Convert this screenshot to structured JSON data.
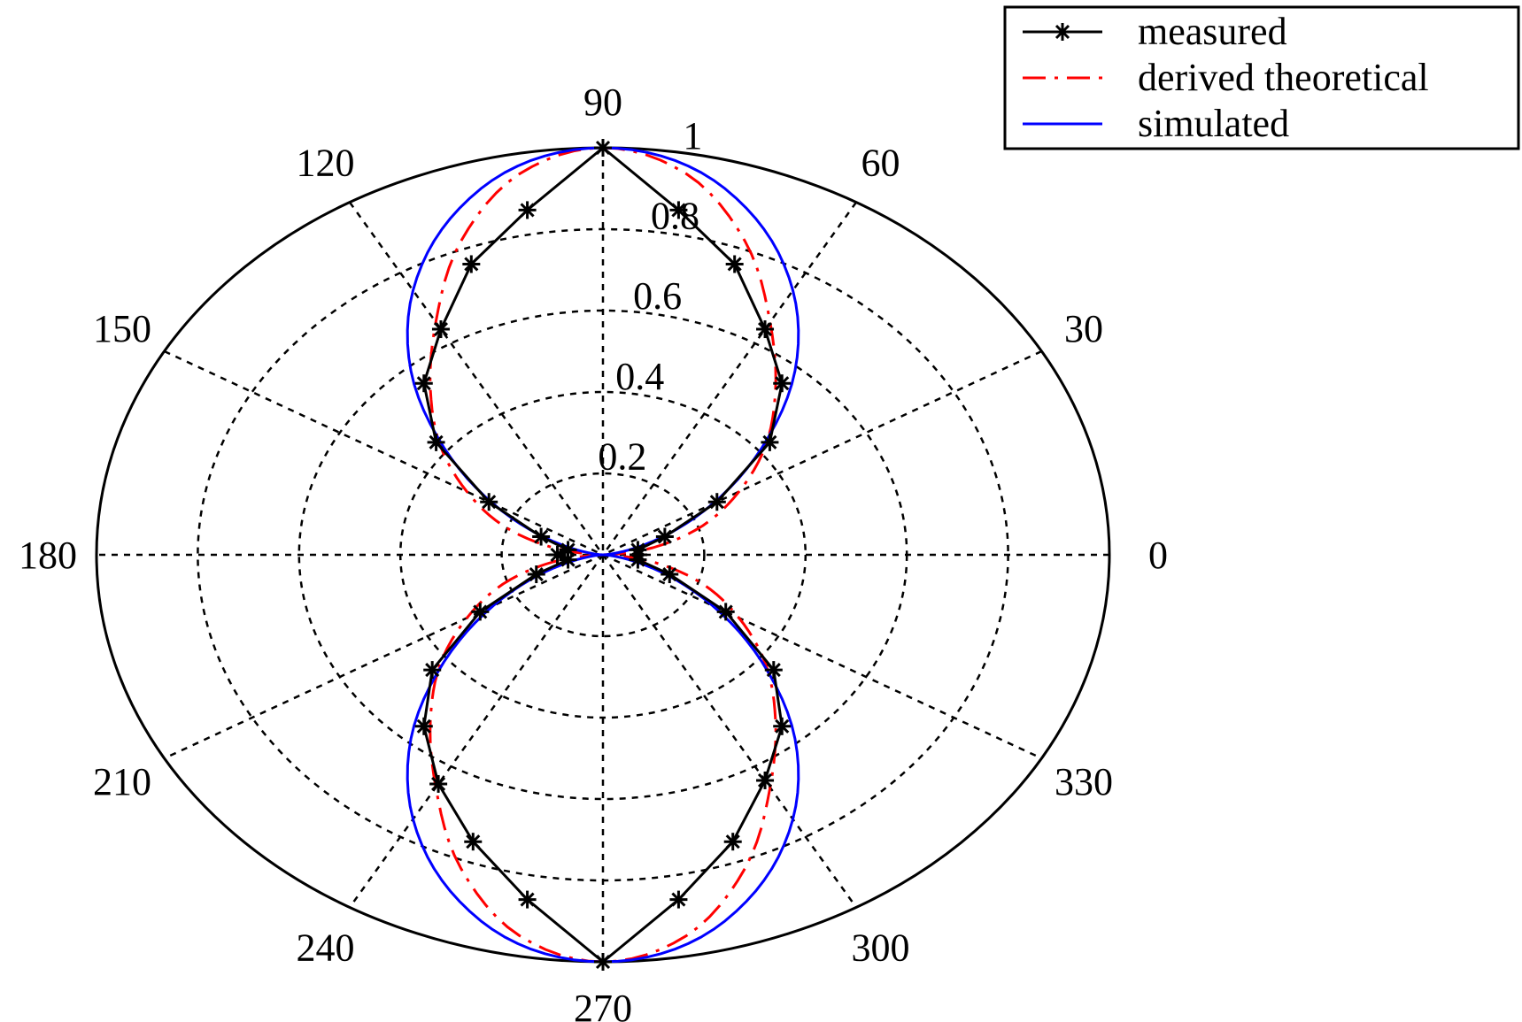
{
  "chart_data": {
    "type": "polar",
    "title": "",
    "theta_unit": "degrees",
    "r_range": [
      0,
      1
    ],
    "r_ticks": [
      {
        "value": 0.2,
        "label": "0.2"
      },
      {
        "value": 0.4,
        "label": "0.4"
      },
      {
        "value": 0.6,
        "label": "0.6"
      },
      {
        "value": 0.8,
        "label": "0.8"
      },
      {
        "value": 1.0,
        "label": "1"
      }
    ],
    "angle_ticks": [
      {
        "value": 0,
        "label": "0"
      },
      {
        "value": 30,
        "label": "30"
      },
      {
        "value": 60,
        "label": "60"
      },
      {
        "value": 90,
        "label": "90"
      },
      {
        "value": 120,
        "label": "120"
      },
      {
        "value": 150,
        "label": "150"
      },
      {
        "value": 180,
        "label": "180"
      },
      {
        "value": 210,
        "label": "210"
      },
      {
        "value": 240,
        "label": "240"
      },
      {
        "value": 270,
        "label": "270"
      },
      {
        "value": 300,
        "label": "300"
      },
      {
        "value": 330,
        "label": "330"
      }
    ],
    "grid": true,
    "legend_position": "top-right",
    "series": [
      {
        "name": "measured",
        "color": "#000000",
        "line_style": "solid",
        "marker": "asterisk",
        "theta": [
          0,
          10,
          20,
          30,
          40,
          50,
          60,
          70,
          80,
          90,
          100,
          110,
          120,
          130,
          140,
          150,
          160,
          170,
          180,
          190,
          200,
          210,
          220,
          230,
          240,
          250,
          260,
          270,
          280,
          290,
          300,
          310,
          320,
          330,
          340,
          350
        ],
        "r": [
          0.07,
          0.07,
          0.13,
          0.26,
          0.43,
          0.55,
          0.64,
          0.76,
          0.86,
          1.0,
          0.86,
          0.76,
          0.64,
          0.55,
          0.43,
          0.26,
          0.13,
          0.07,
          0.09,
          0.07,
          0.14,
          0.28,
          0.44,
          0.55,
          0.65,
          0.75,
          0.86,
          1.0,
          0.86,
          0.75,
          0.64,
          0.55,
          0.44,
          0.28,
          0.14,
          0.07
        ]
      },
      {
        "name": "derived theoretical",
        "color": "#ff0000",
        "line_style": "dash-dot",
        "theta": [
          0,
          10,
          20,
          30,
          40,
          50,
          60,
          70,
          80,
          90,
          100,
          110,
          120,
          130,
          140,
          150,
          160,
          170,
          180,
          190,
          200,
          210,
          220,
          230,
          240,
          250,
          260,
          270,
          280,
          290,
          300,
          310,
          320,
          330,
          340,
          350
        ],
        "r": [
          0.0,
          0.1,
          0.21,
          0.31,
          0.42,
          0.53,
          0.66,
          0.82,
          0.95,
          1.0,
          0.95,
          0.82,
          0.66,
          0.53,
          0.42,
          0.31,
          0.21,
          0.1,
          0.0,
          0.1,
          0.21,
          0.31,
          0.42,
          0.53,
          0.66,
          0.82,
          0.95,
          1.0,
          0.95,
          0.82,
          0.66,
          0.53,
          0.42,
          0.31,
          0.21,
          0.1
        ]
      },
      {
        "name": "simulated",
        "color": "#0000ff",
        "line_style": "solid",
        "theta": [
          0,
          10,
          20,
          30,
          40,
          50,
          60,
          70,
          80,
          90,
          100,
          110,
          120,
          130,
          140,
          150,
          160,
          170,
          180,
          190,
          200,
          210,
          220,
          230,
          240,
          250,
          260,
          270,
          280,
          290,
          300,
          310,
          320,
          330,
          340,
          350
        ],
        "r": [
          0.0,
          0.03,
          0.12,
          0.25,
          0.41,
          0.59,
          0.75,
          0.88,
          0.97,
          1.0,
          0.97,
          0.88,
          0.75,
          0.59,
          0.41,
          0.25,
          0.12,
          0.03,
          0.0,
          0.03,
          0.12,
          0.25,
          0.41,
          0.59,
          0.75,
          0.88,
          0.97,
          1.0,
          0.97,
          0.88,
          0.75,
          0.59,
          0.41,
          0.25,
          0.12,
          0.03
        ]
      }
    ]
  }
}
